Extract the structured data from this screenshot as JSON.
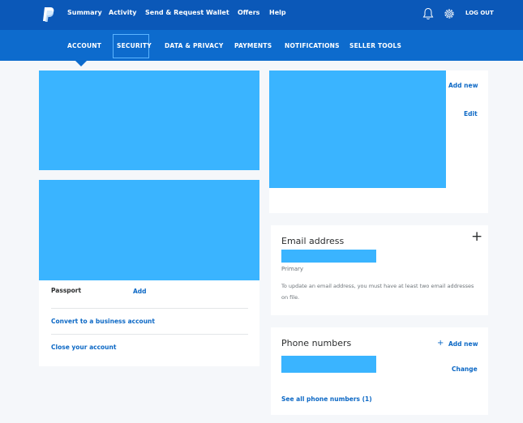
{
  "topnav": {
    "items": [
      "Summary",
      "Activity",
      "Send & Request",
      "Wallet",
      "Offers",
      "Help"
    ],
    "logout": "LOG OUT",
    "icons": {
      "logo": "paypal-logo",
      "notifications": "bell-icon",
      "settings": "gear-icon"
    }
  },
  "subnav": {
    "tabs": [
      "ACCOUNT",
      "SECURITY",
      "DATA & PRIVACY",
      "PAYMENTS",
      "NOTIFICATIONS",
      "SELLER TOOLS"
    ],
    "active": "SECURITY"
  },
  "left": {
    "passport_label": "Passport",
    "passport_add": "Add",
    "convert": "Convert to a business account",
    "close": "Close your account"
  },
  "right_top": {
    "add_new": "Add new",
    "edit": "Edit"
  },
  "email": {
    "title": "Email address",
    "primary": "Primary",
    "note": "To update an email address, you must have at least two email addresses on file.",
    "add_symbol": "+"
  },
  "phone": {
    "title": "Phone numbers",
    "add_symbol": "+",
    "add_new": "Add new",
    "change": "Change",
    "see_all": "See all phone numbers (1)"
  },
  "colors": {
    "top": "#0b58b8",
    "sub": "#0d6bcd",
    "link": "#0c68c5",
    "redacted": "#3ab4ff"
  }
}
